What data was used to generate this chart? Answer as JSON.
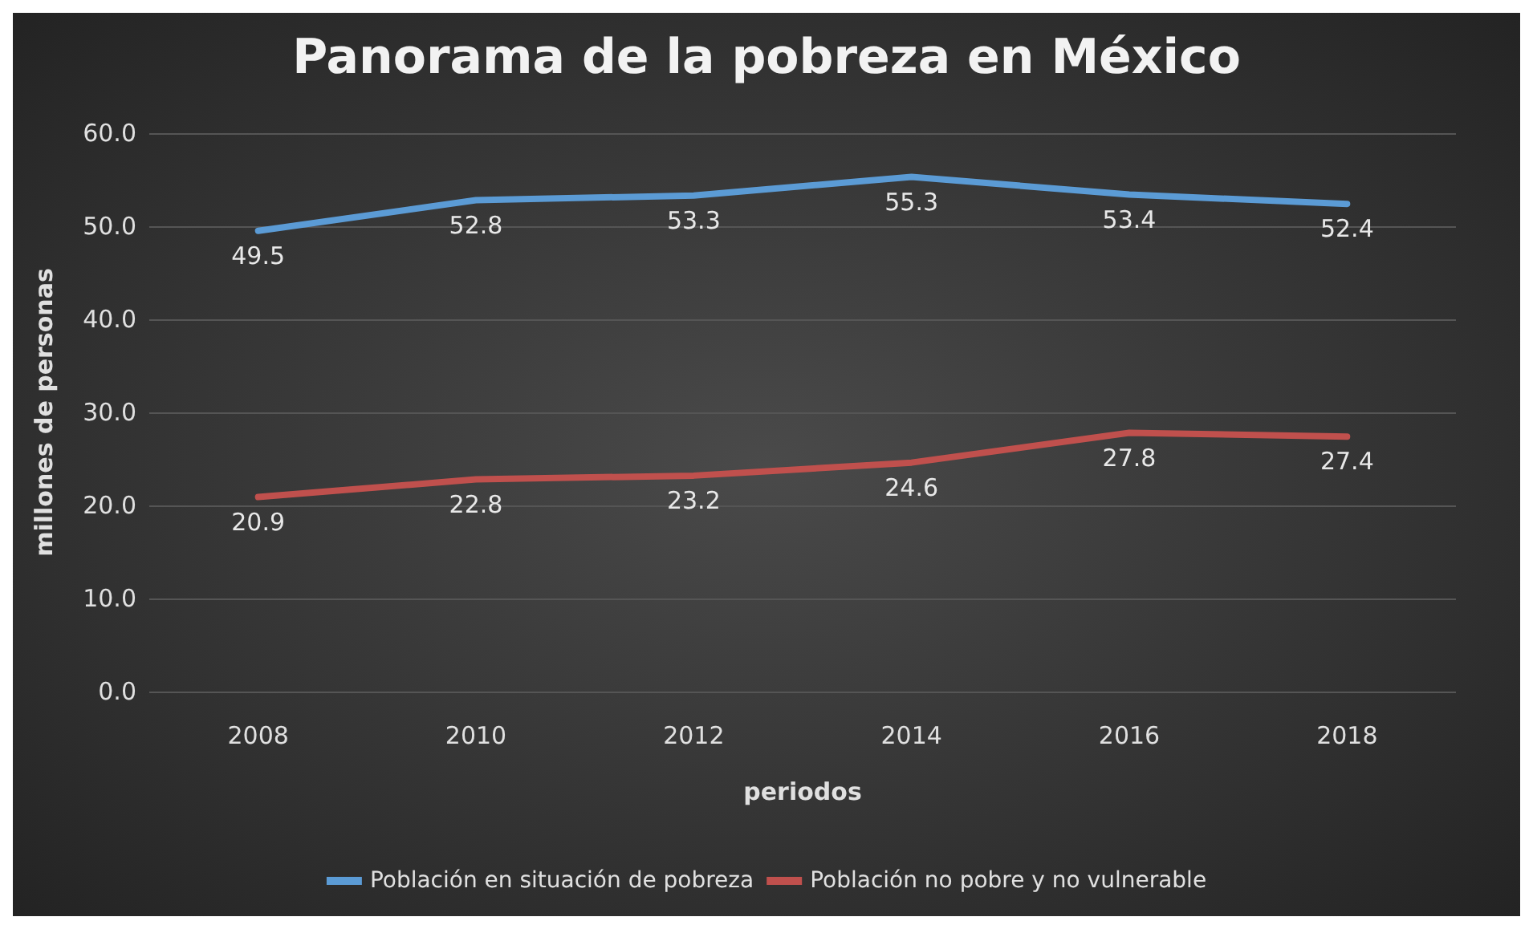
{
  "chart_data": {
    "type": "line",
    "title": "Panorama de la pobreza en México",
    "xlabel": "periodos",
    "ylabel": "millones de personas",
    "categories": [
      "2008",
      "2010",
      "2012",
      "2014",
      "2016",
      "2018"
    ],
    "series": [
      {
        "name": "Población en situación de pobreza",
        "color": "#5b9bd5",
        "values": [
          49.5,
          52.8,
          53.3,
          55.3,
          53.4,
          52.4
        ]
      },
      {
        "name": "Población no pobre y no vulnerable",
        "color": "#c0504d",
        "values": [
          20.9,
          22.8,
          23.2,
          24.6,
          27.8,
          27.4
        ]
      }
    ],
    "ylim": [
      0,
      60
    ],
    "yticks": [
      {
        "value": 0,
        "label": "0.0"
      },
      {
        "value": 10,
        "label": "10.0"
      },
      {
        "value": 20,
        "label": "20.0"
      },
      {
        "value": 30,
        "label": "30.0"
      },
      {
        "value": 40,
        "label": "40.0"
      },
      {
        "value": 50,
        "label": "50.0"
      },
      {
        "value": 60,
        "label": "60.0"
      }
    ],
    "grid": "y",
    "legend": "bottom",
    "data_labels": true,
    "marker": "none",
    "line_style": "solid"
  }
}
